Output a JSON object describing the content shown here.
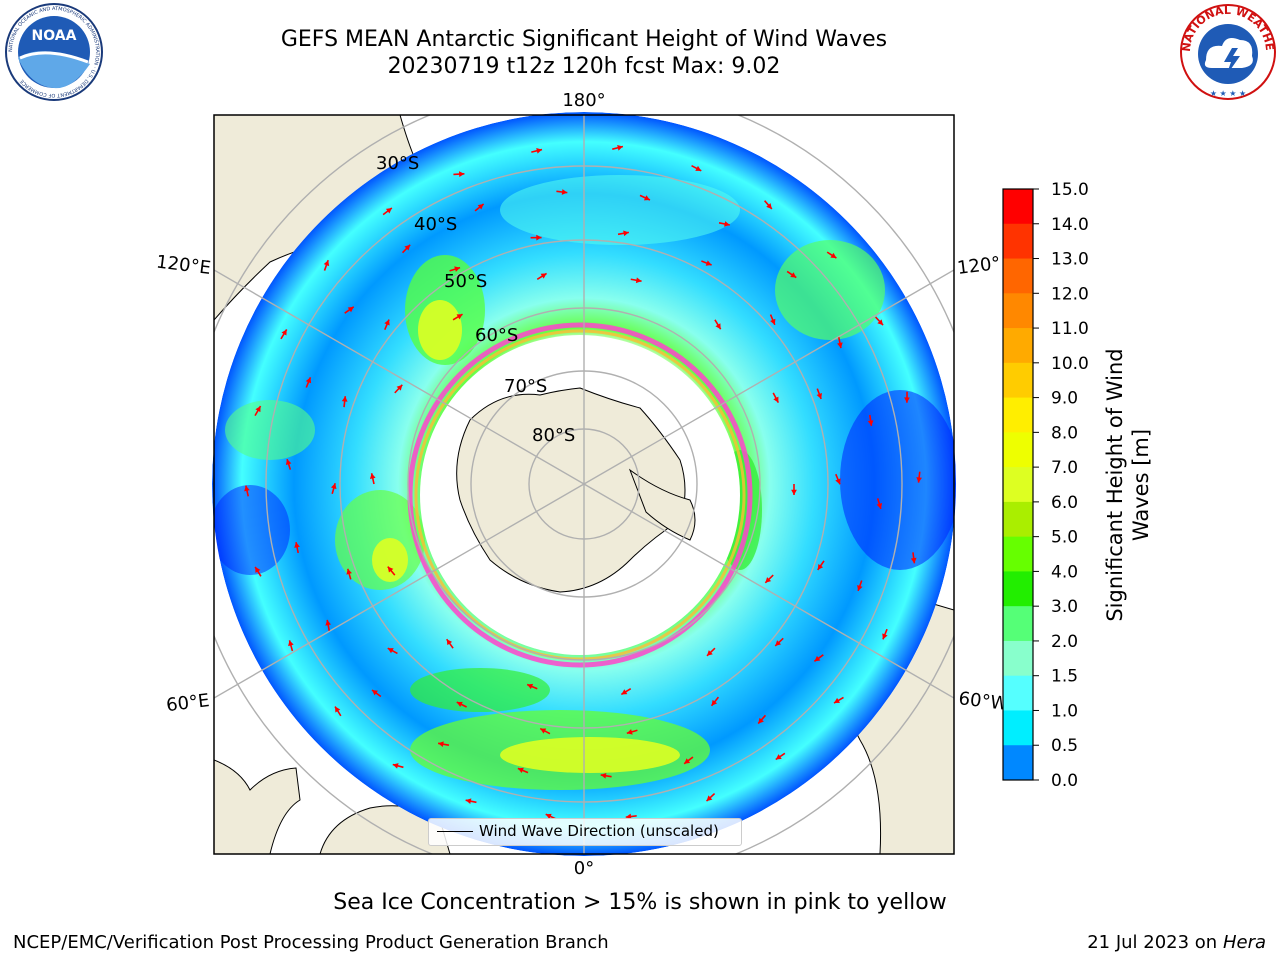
{
  "header": {
    "title_line1": "GEFS MEAN Antarctic Significant Height of Wind Waves",
    "title_line2": "20230719 t12z 120h fcst   Max: 9.02"
  },
  "logos": {
    "noaa": {
      "text": "NOAA",
      "ring_text": "NATIONAL OCEANIC AND ATMOSPHERIC ADMINISTRATION · U.S. DEPARTMENT OF COMMERCE"
    },
    "nws": {
      "ring_text": "NATIONAL WEATHER SERVICE"
    }
  },
  "map": {
    "longitude_labels": {
      "top": "180°",
      "bottom": "0°",
      "upper_left": "120°E",
      "lower_left": "60°E",
      "upper_right": "120°",
      "lower_right": "60°W"
    },
    "latitude_labels": [
      "30°S",
      "40°S",
      "50°S",
      "60°S",
      "70°S",
      "80°S"
    ],
    "legend": "Wind Wave Direction (unscaled)",
    "colors": {
      "land": "#efebd9",
      "ice_edge": "#ff44cc",
      "grid": "#b0b0b0",
      "arrow": "#ff0000"
    }
  },
  "colorbar": {
    "title": "Significant Height of Wind Waves [m]",
    "ticks": [
      "15.0",
      "14.0",
      "13.0",
      "12.0",
      "11.0",
      "10.0",
      "9.0",
      "8.0",
      "7.0",
      "6.0",
      "5.0",
      "4.0",
      "3.0",
      "2.0",
      "1.5",
      "1.0",
      "0.5",
      "0.0"
    ],
    "colors": [
      "#ff0000",
      "#ff3300",
      "#ff6600",
      "#ff8800",
      "#ffaa00",
      "#ffcc00",
      "#ffee00",
      "#eeff00",
      "#ddff22",
      "#aaee00",
      "#66ff00",
      "#22ee00",
      "#55ff77",
      "#88ffcc",
      "#55ffff",
      "#00eeff",
      "#0088ff",
      "#0000ff"
    ]
  },
  "footer": {
    "note": "Sea Ice Concentration > 15% is shown in pink to yellow",
    "left": "NCEP/EMC/Verification Post Processing Product Generation Branch",
    "right_date": "21 Jul 2023 on ",
    "right_machine": "Hera"
  }
}
